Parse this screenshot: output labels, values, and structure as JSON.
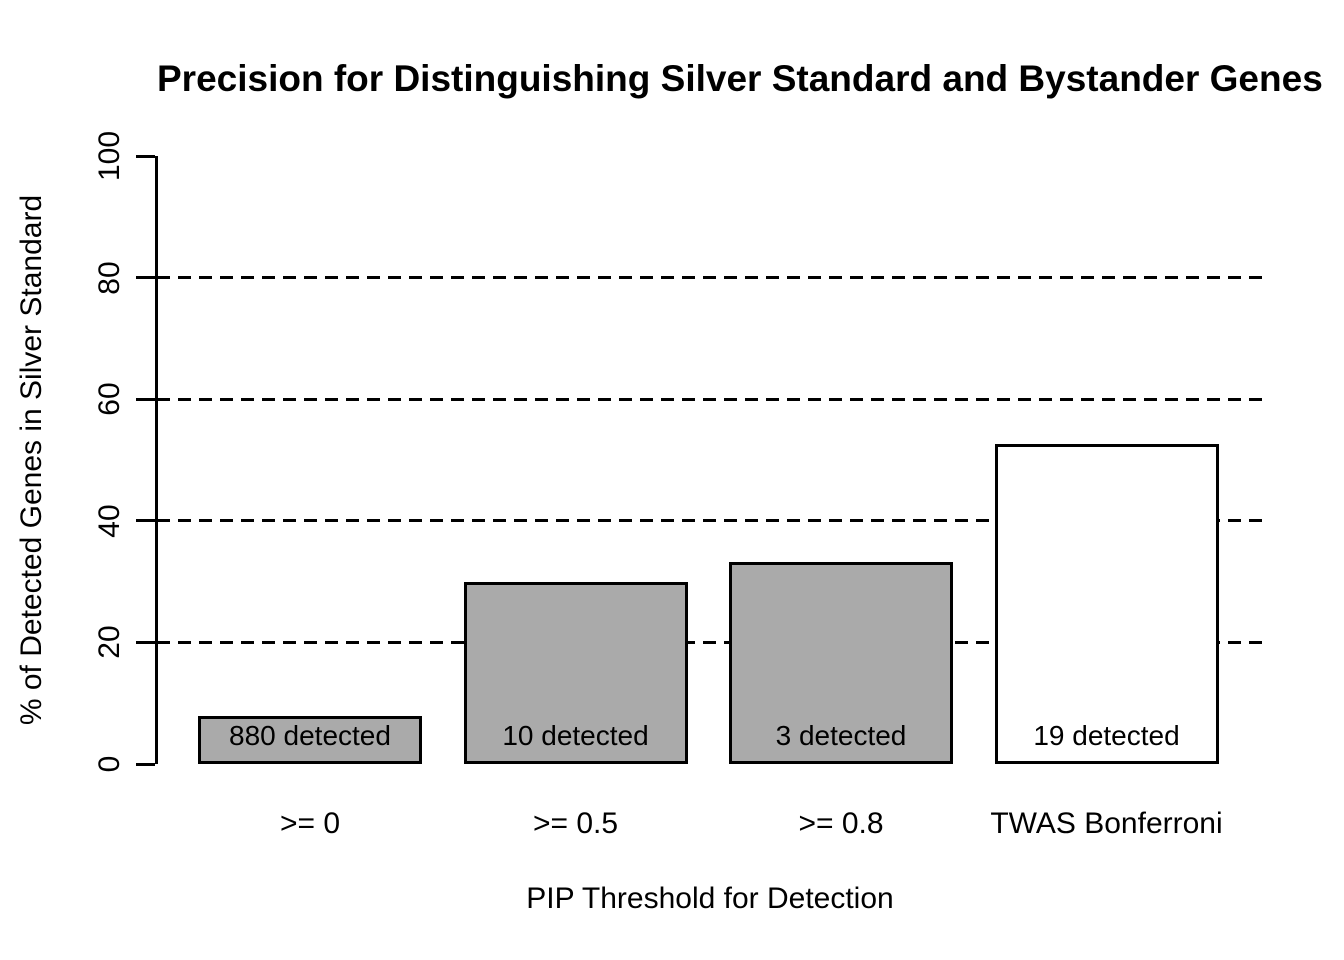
{
  "title": "Precision for Distinguishing Silver Standard and Bystander Genes",
  "chart_data": {
    "type": "bar",
    "title": "Precision for Distinguishing Silver Standard and Bystander Genes",
    "xlabel": "PIP Threshold for Detection",
    "ylabel": "% of Detected Genes in Silver Standard",
    "categories": [
      ">= 0",
      ">= 0.5",
      ">= 0.8",
      "TWAS Bonferroni"
    ],
    "values": [
      7.9,
      30,
      33.3,
      52.6
    ],
    "bar_labels": [
      "880 detected",
      "10 detected",
      "3 detected",
      "19 detected"
    ],
    "bar_colors": [
      "#aaaaaa",
      "#aaaaaa",
      "#aaaaaa",
      "#ffffff"
    ],
    "bar_border_color": "#000000",
    "ylim": [
      0,
      100
    ],
    "yticks": [
      0,
      20,
      40,
      60,
      80,
      100
    ],
    "ytick_labels": [
      "0",
      "20",
      "40",
      "60",
      "80",
      "100"
    ],
    "gridlines": [
      20,
      40,
      60,
      80
    ],
    "grid_style": "dashed",
    "legend_position": "none",
    "background_color": "#ffffff"
  }
}
